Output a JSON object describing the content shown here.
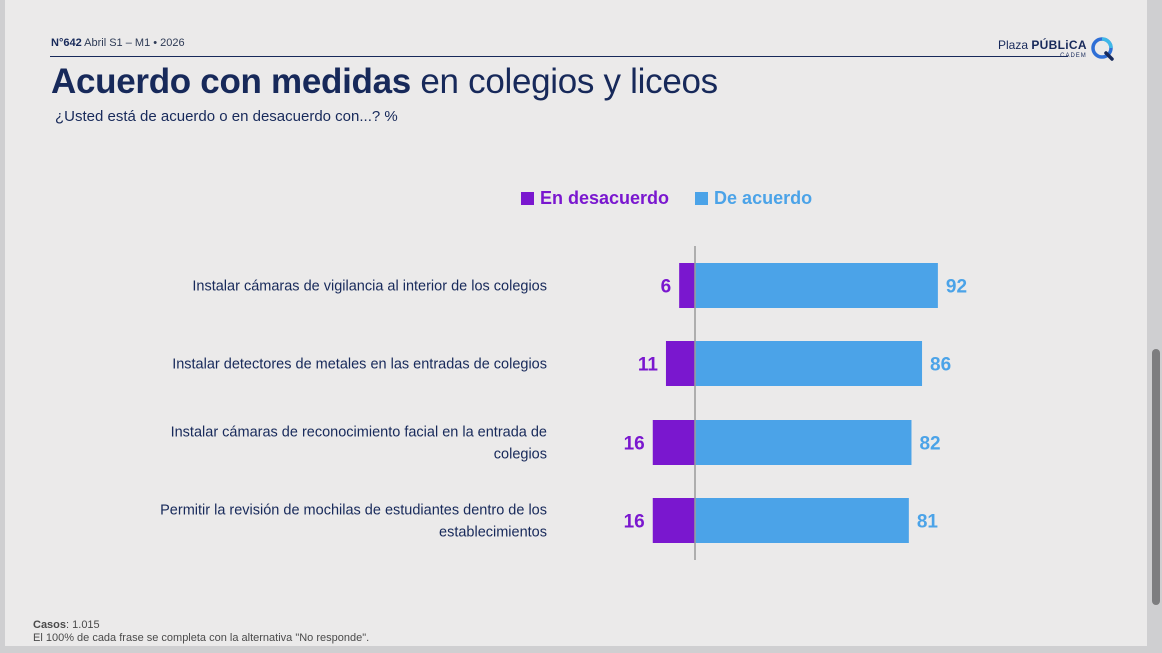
{
  "header": {
    "edition_number": "N°642",
    "edition_date": "Abril S1 – M1 • 2026",
    "brand_name_light": "Plaza",
    "brand_name_bold": "PÚBLiCA",
    "brand_sub": "CADEM",
    "logo": "plaza-publica-logo-icon"
  },
  "title": {
    "bold": "Acuerdo con medidas",
    "regular": " en colegios y liceos"
  },
  "subtitle": "¿Usted está de acuerdo o en desacuerdo con...? %",
  "footer": {
    "cases_label": "Casos",
    "cases_value": ": 1.015",
    "note": "El 100% de cada frase se completa con la alternativa \"No responde\"."
  },
  "colors": {
    "disagree": "#7a17cf",
    "agree": "#4ba3e8",
    "navy": "#17295a"
  },
  "chart_data": {
    "type": "bar",
    "orientation": "horizontal-diverging",
    "categories": [
      [
        "Instalar cámaras de vigilancia al interior de los colegios"
      ],
      [
        "Instalar detectores de metales en las entradas de colegios"
      ],
      [
        "Instalar cámaras de reconocimiento facial en la entrada de",
        "colegios"
      ],
      [
        "Permitir la revisión de mochilas de estudiantes dentro de los",
        "establecimientos"
      ]
    ],
    "series": [
      {
        "name": "En desacuerdo",
        "values": [
          6,
          11,
          16,
          16
        ]
      },
      {
        "name": "De acuerdo",
        "values": [
          92,
          86,
          82,
          81
        ]
      }
    ],
    "legend": "top",
    "grid": false
  }
}
